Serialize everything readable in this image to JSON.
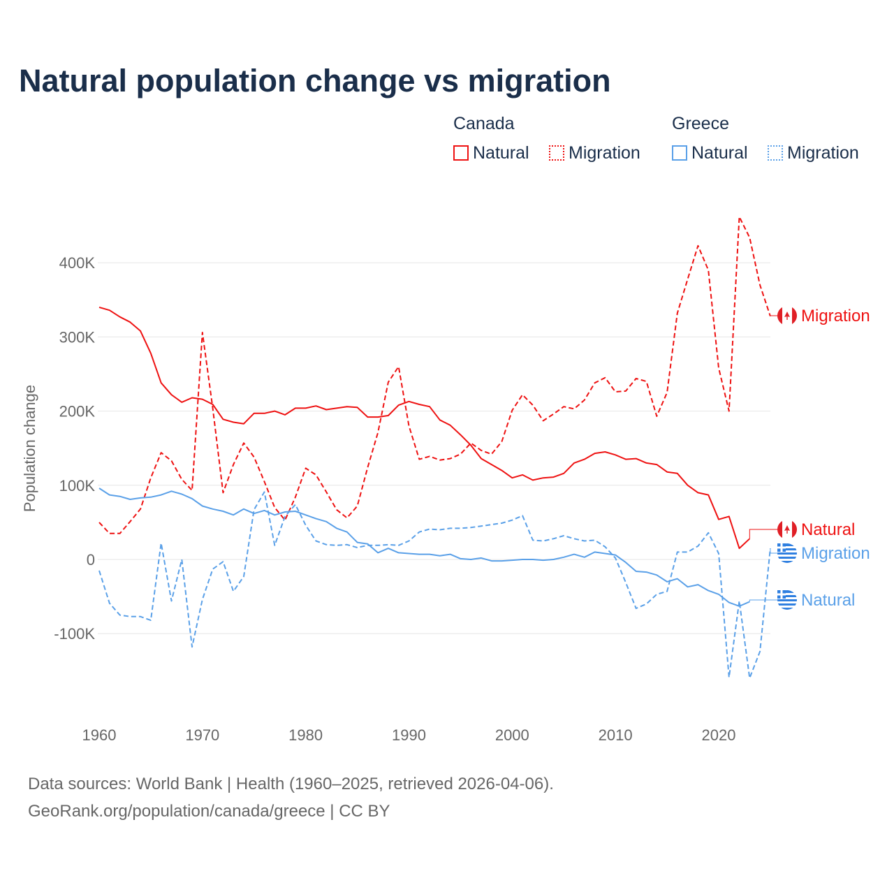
{
  "title": "Natural population change vs migration",
  "legend": {
    "groups": [
      {
        "name": "Canada",
        "items": [
          "Natural",
          "Migration"
        ],
        "color": "#ee1111"
      },
      {
        "name": "Greece",
        "items": [
          "Natural",
          "Migration"
        ],
        "color": "#5aa0e8"
      }
    ]
  },
  "footer": {
    "line1": "Data sources: World Bank | Health (1960–2025, retrieved 2026-04-06).",
    "line2": "GeoRank.org/population/canada/greece | CC BY"
  },
  "chart_data": {
    "type": "line",
    "title": "Natural population change vs migration",
    "xlabel": "",
    "ylabel": "Population change",
    "xlim": [
      1960,
      2025
    ],
    "ylim": [
      -180000,
      480000
    ],
    "xticks": [
      1960,
      1970,
      1980,
      1990,
      2000,
      2010,
      2020
    ],
    "yticks": [
      {
        "v": -100000,
        "label": "-100K"
      },
      {
        "v": 0,
        "label": "0"
      },
      {
        "v": 100000,
        "label": "100K"
      },
      {
        "v": 200000,
        "label": "200K"
      },
      {
        "v": 300000,
        "label": "300K"
      },
      {
        "v": 400000,
        "label": "400K"
      }
    ],
    "start_year": 1960,
    "units": "thousands",
    "series": [
      {
        "name": "Canada Natural",
        "label": "Natural",
        "color": "#ee1111",
        "dash": false,
        "values": [
          340,
          336,
          327,
          320,
          308,
          278,
          238,
          222,
          212,
          218,
          216,
          209,
          189,
          185,
          183,
          197,
          197,
          200,
          195,
          204,
          204,
          207,
          202,
          204,
          206,
          205,
          192,
          192,
          194,
          208,
          213,
          209,
          206,
          188,
          181,
          168,
          154,
          136,
          128,
          120,
          110,
          114,
          107,
          110,
          111,
          116,
          130,
          135,
          143,
          145,
          141,
          135,
          136,
          130,
          128,
          118,
          116,
          100,
          90,
          87,
          54,
          58,
          15,
          28
        ]
      },
      {
        "name": "Canada Migration",
        "label": "Migration",
        "color": "#ee1111",
        "dash": true,
        "values": [
          50,
          35,
          35,
          51,
          68,
          110,
          144,
          133,
          108,
          93,
          306,
          204,
          90,
          128,
          157,
          138,
          105,
          70,
          53,
          84,
          123,
          114,
          91,
          67,
          56,
          72,
          124,
          171,
          239,
          260,
          180,
          135,
          139,
          134,
          136,
          142,
          157,
          147,
          142,
          159,
          201,
          222,
          208,
          187,
          196,
          206,
          203,
          215,
          238,
          245,
          226,
          227,
          244,
          240,
          193,
          225,
          332,
          378,
          423,
          390,
          258,
          200,
          462,
          434,
          370,
          328
        ]
      },
      {
        "name": "Greece Natural",
        "label": "Natural",
        "color": "#5aa0e8",
        "dash": false,
        "values": [
          96,
          87,
          85,
          81,
          83,
          84,
          87,
          92,
          88,
          82,
          72,
          68,
          65,
          60,
          68,
          62,
          66,
          60,
          64,
          65,
          60,
          55,
          51,
          42,
          37,
          23,
          21,
          9,
          15,
          9,
          8,
          7,
          7,
          5,
          7,
          1,
          0,
          2,
          -2,
          -2,
          -1,
          0,
          0,
          -1,
          0,
          3,
          7,
          3,
          10,
          8,
          6,
          -4,
          -16,
          -17,
          -21,
          -30,
          -26,
          -37,
          -34,
          -42,
          -47,
          -58,
          -63,
          -57
        ]
      },
      {
        "name": "Greece Migration",
        "label": "Migration",
        "color": "#5aa0e8",
        "dash": true,
        "values": [
          -15,
          -59,
          -75,
          -77,
          -77,
          -82,
          22,
          -56,
          0,
          -118,
          -54,
          -13,
          -3,
          -43,
          -23,
          67,
          91,
          19,
          58,
          74,
          46,
          25,
          20,
          19,
          20,
          16,
          19,
          19,
          20,
          19,
          25,
          37,
          41,
          40,
          42,
          42,
          43,
          45,
          47,
          49,
          53,
          59,
          26,
          25,
          28,
          32,
          28,
          25,
          26,
          17,
          2,
          -31,
          -66,
          -60,
          -47,
          -43,
          10,
          10,
          18,
          36,
          8,
          -159,
          -56,
          -160,
          -124,
          15
        ]
      }
    ]
  }
}
